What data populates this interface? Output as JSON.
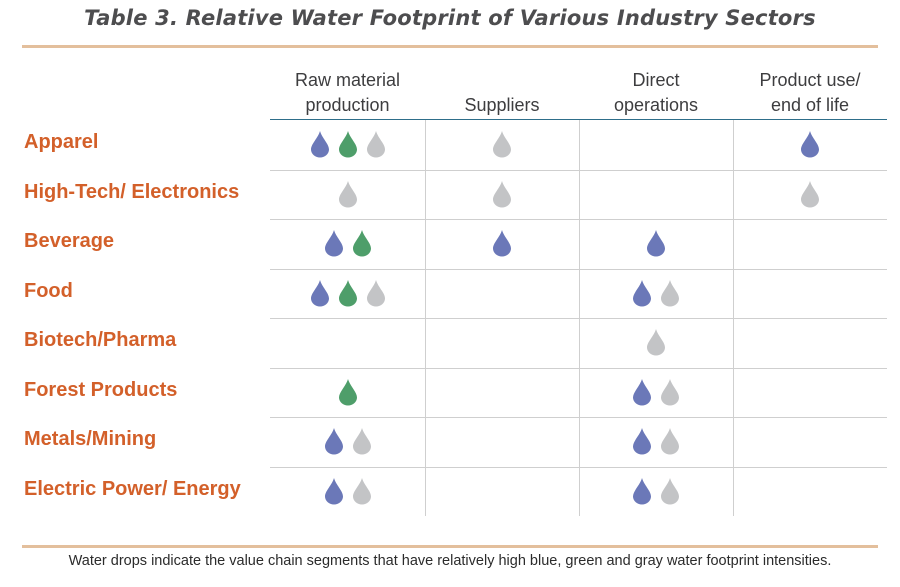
{
  "title": "Table 3. Relative Water Footprint of Various Industry Sectors",
  "columns": [
    {
      "line1": "Raw material",
      "line2": "production"
    },
    {
      "line1": "",
      "line2": "Suppliers"
    },
    {
      "line1": "Direct",
      "line2": "operations"
    },
    {
      "line1": "Product use/",
      "line2": "end of life"
    }
  ],
  "rows": [
    {
      "label": "Apparel",
      "cells": [
        [
          "blue",
          "green",
          "gray"
        ],
        [
          "gray"
        ],
        [],
        [
          "blue"
        ]
      ]
    },
    {
      "label": "High-Tech/ Electronics",
      "cells": [
        [
          "gray"
        ],
        [
          "gray"
        ],
        [],
        [
          "gray"
        ]
      ]
    },
    {
      "label": "Beverage",
      "cells": [
        [
          "blue",
          "green"
        ],
        [
          "blue"
        ],
        [
          "blue"
        ],
        []
      ]
    },
    {
      "label": "Food",
      "cells": [
        [
          "blue",
          "green",
          "gray"
        ],
        [],
        [
          "blue",
          "gray"
        ],
        []
      ]
    },
    {
      "label": "Biotech/Pharma",
      "cells": [
        [],
        [],
        [
          "gray"
        ],
        []
      ]
    },
    {
      "label": "Forest Products",
      "cells": [
        [
          "green"
        ],
        [],
        [
          "blue",
          "gray"
        ],
        []
      ]
    },
    {
      "label": "Metals/Mining",
      "cells": [
        [
          "blue",
          "gray"
        ],
        [],
        [
          "blue",
          "gray"
        ],
        []
      ]
    },
    {
      "label": "Electric Power/ Energy",
      "cells": [
        [
          "blue",
          "gray"
        ],
        [],
        [
          "blue",
          "gray"
        ],
        []
      ]
    }
  ],
  "drop_colors": {
    "blue": "#6b78b8",
    "green": "#4e9e6a",
    "gray": "#c3c4c6"
  },
  "footnote": "Water drops indicate the value chain segments that have relatively high blue, green and gray water footprint intensities."
}
